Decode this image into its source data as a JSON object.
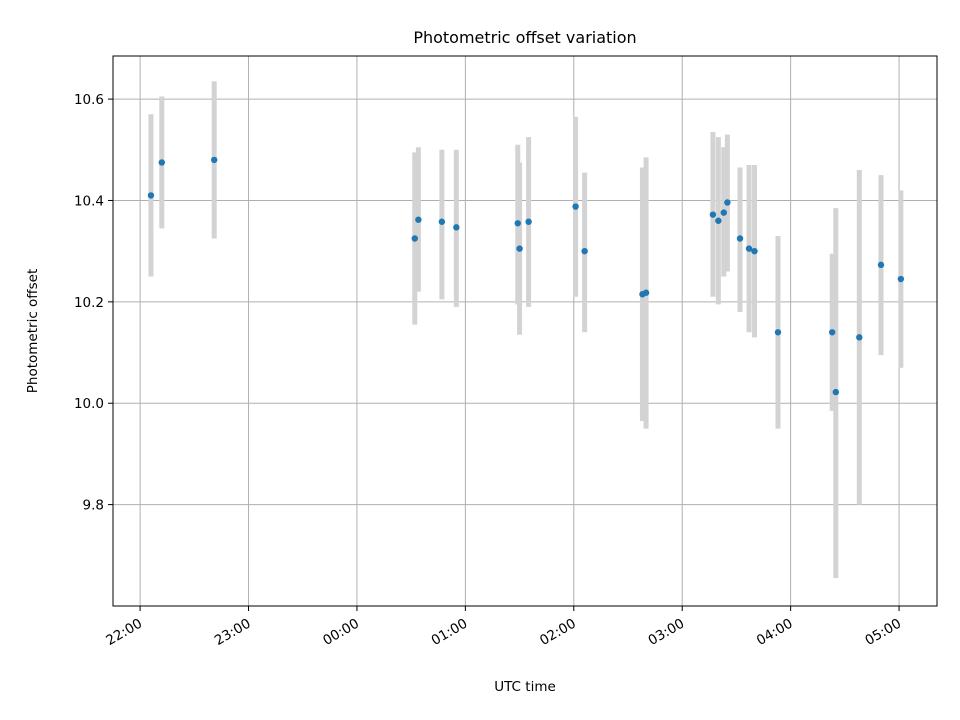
{
  "chart_data": {
    "type": "scatter",
    "title": "Photometric offset variation",
    "xlabel": "UTC time",
    "ylabel": "Photometric offset",
    "x_tick_labels": [
      "22:00",
      "23:00",
      "00:00",
      "01:00",
      "02:00",
      "03:00",
      "04:00",
      "05:00"
    ],
    "x_tick_hours": [
      0,
      1,
      2,
      3,
      4,
      5,
      6,
      7
    ],
    "y_ticks": [
      9.8,
      10.0,
      10.2,
      10.4,
      10.6
    ],
    "y_tick_labels": [
      "9.8",
      "10.0",
      "10.2",
      "10.4",
      "10.6"
    ],
    "xlim_hours": [
      -0.25,
      7.35
    ],
    "ylim": [
      9.6,
      10.685
    ],
    "grid": true,
    "point_color": "#1f77b4",
    "errorbar_color": "#d3d3d3",
    "series": [
      {
        "points": [
          {
            "time": "22:06",
            "y": 10.41,
            "ylow": 10.25,
            "yhigh": 10.57
          },
          {
            "time": "22:12",
            "y": 10.475,
            "ylow": 10.345,
            "yhigh": 10.605
          },
          {
            "time": "22:41",
            "y": 10.48,
            "ylow": 10.325,
            "yhigh": 10.635
          },
          {
            "time": "00:32",
            "y": 10.325,
            "ylow": 10.155,
            "yhigh": 10.495
          },
          {
            "time": "00:34",
            "y": 10.362,
            "ylow": 10.22,
            "yhigh": 10.505
          },
          {
            "time": "00:47",
            "y": 10.358,
            "ylow": 10.205,
            "yhigh": 10.5
          },
          {
            "time": "00:55",
            "y": 10.347,
            "ylow": 10.19,
            "yhigh": 10.5
          },
          {
            "time": "01:29",
            "y": 10.355,
            "ylow": 10.195,
            "yhigh": 10.51
          },
          {
            "time": "01:30",
            "y": 10.305,
            "ylow": 10.135,
            "yhigh": 10.475
          },
          {
            "time": "01:35",
            "y": 10.358,
            "ylow": 10.19,
            "yhigh": 10.525
          },
          {
            "time": "02:01",
            "y": 10.388,
            "ylow": 10.21,
            "yhigh": 10.565
          },
          {
            "time": "02:06",
            "y": 10.3,
            "ylow": 10.14,
            "yhigh": 10.455
          },
          {
            "time": "02:38",
            "y": 10.215,
            "ylow": 9.965,
            "yhigh": 10.465
          },
          {
            "time": "02:40",
            "y": 10.218,
            "ylow": 9.95,
            "yhigh": 10.485
          },
          {
            "time": "03:17",
            "y": 10.372,
            "ylow": 10.21,
            "yhigh": 10.535
          },
          {
            "time": "03:20",
            "y": 10.36,
            "ylow": 10.195,
            "yhigh": 10.525
          },
          {
            "time": "03:23",
            "y": 10.376,
            "ylow": 10.25,
            "yhigh": 10.505
          },
          {
            "time": "03:25",
            "y": 10.396,
            "ylow": 10.26,
            "yhigh": 10.53
          },
          {
            "time": "03:32",
            "y": 10.325,
            "ylow": 10.18,
            "yhigh": 10.465
          },
          {
            "time": "03:37",
            "y": 10.305,
            "ylow": 10.14,
            "yhigh": 10.47
          },
          {
            "time": "03:40",
            "y": 10.3,
            "ylow": 10.13,
            "yhigh": 10.47
          },
          {
            "time": "03:53",
            "y": 10.14,
            "ylow": 9.95,
            "yhigh": 10.33
          },
          {
            "time": "04:23",
            "y": 10.14,
            "ylow": 9.985,
            "yhigh": 10.295
          },
          {
            "time": "04:25",
            "y": 10.022,
            "ylow": 9.655,
            "yhigh": 10.385
          },
          {
            "time": "04:38",
            "y": 10.13,
            "ylow": 9.8,
            "yhigh": 10.46
          },
          {
            "time": "04:50",
            "y": 10.273,
            "ylow": 10.095,
            "yhigh": 10.45
          },
          {
            "time": "05:01",
            "y": 10.245,
            "ylow": 10.07,
            "yhigh": 10.42
          }
        ]
      }
    ]
  }
}
